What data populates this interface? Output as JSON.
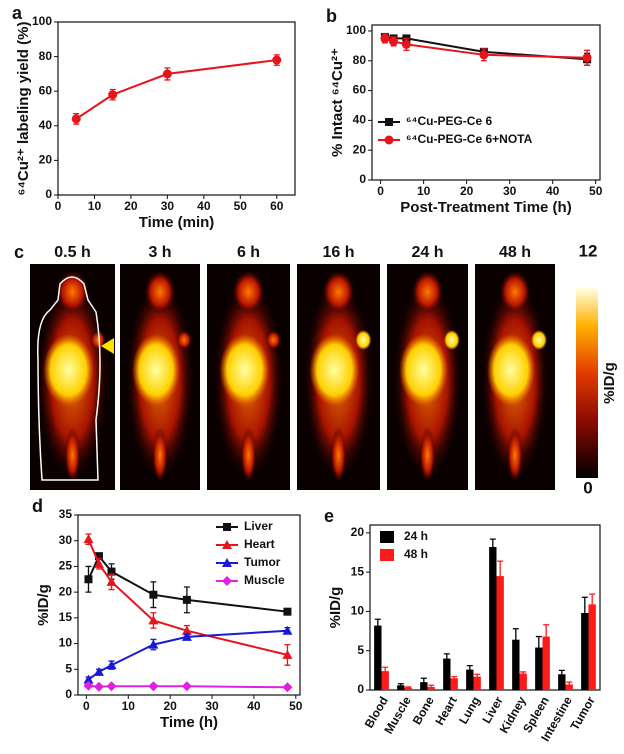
{
  "chart_data": [
    {
      "type": "line",
      "panel_label": "a",
      "xlabel": "Time (min)",
      "ylabel": "⁶⁴Cu²⁺ labeling yield (%)",
      "x": [
        5,
        15,
        30,
        60
      ],
      "series": [
        {
          "color": "#e8141c",
          "marker": "circle",
          "values": [
            44,
            58,
            70,
            78
          ],
          "errors": [
            3,
            3,
            3.5,
            3
          ]
        }
      ],
      "xlim": [
        0,
        65
      ],
      "xticks": [
        0,
        10,
        20,
        30,
        40,
        50,
        60
      ],
      "ylim": [
        0,
        100
      ],
      "yticks": [
        0,
        20,
        40,
        60,
        80,
        100
      ]
    },
    {
      "type": "line",
      "panel_label": "b",
      "xlabel": "Post-Treatment Time (h)",
      "ylabel": "% Intact ⁶⁴Cu²⁺",
      "x": [
        1,
        3,
        6,
        24,
        48
      ],
      "series": [
        {
          "name": "⁶⁴Cu-PEG-Ce 6",
          "color": "#111111",
          "marker": "square",
          "values": [
            96,
            95,
            95,
            86,
            81
          ],
          "errors": [
            2,
            2,
            2,
            2,
            4
          ]
        },
        {
          "name": "⁶⁴Cu-PEG-Ce 6+NOTA",
          "color": "#e8141c",
          "marker": "circle",
          "values": [
            95,
            93,
            91,
            84,
            82
          ],
          "errors": [
            3,
            3,
            4,
            4,
            5
          ]
        }
      ],
      "legend": "lower left",
      "xlim": [
        -2,
        51
      ],
      "xticks": [
        0,
        10,
        20,
        30,
        40,
        50
      ],
      "ylim": [
        0,
        104
      ],
      "yticks": [
        0,
        20,
        40,
        60,
        80,
        100
      ]
    },
    {
      "type": "line",
      "panel_label": "d",
      "xlabel": "Time (h)",
      "ylabel": "%ID/g",
      "x": [
        0.5,
        3,
        6,
        16,
        24,
        48
      ],
      "series": [
        {
          "name": "Liver",
          "color": "#111111",
          "marker": "square",
          "values": [
            22.5,
            27,
            24,
            19.5,
            18.5,
            16.2
          ],
          "errors": [
            2.5,
            0.5,
            1.5,
            2.5,
            2.5,
            0.6
          ]
        },
        {
          "name": "Heart",
          "color": "#e8141c",
          "marker": "triangle",
          "values": [
            30.3,
            25.5,
            22,
            14.5,
            12.5,
            7.8
          ],
          "errors": [
            1,
            1,
            1.5,
            1.5,
            1,
            2
          ]
        },
        {
          "name": "Tumor",
          "color": "#1a1ad6",
          "marker": "triangle",
          "values": [
            3,
            4.5,
            5.8,
            9.8,
            11.3,
            12.5
          ],
          "errors": [
            0.5,
            0.5,
            0.8,
            1,
            0.5,
            0.6
          ]
        },
        {
          "name": "Muscle",
          "color": "#e020e0",
          "marker": "diamond",
          "values": [
            1.8,
            1.6,
            1.7,
            1.7,
            1.7,
            1.5
          ],
          "errors": [
            0.3,
            0.3,
            0.3,
            0.2,
            0.2,
            0.2
          ]
        }
      ],
      "legend": "upper right",
      "xlim": [
        -2,
        51
      ],
      "xticks": [
        0,
        10,
        20,
        30,
        40,
        50
      ],
      "ylim": [
        0,
        35
      ],
      "yticks": [
        0,
        5,
        10,
        15,
        20,
        25,
        30,
        35
      ]
    },
    {
      "type": "bar",
      "panel_label": "e",
      "ylabel": "%ID/g",
      "categories": [
        "Blood",
        "Muscle",
        "Bone",
        "Heart",
        "Lung",
        "Liver",
        "Kidney",
        "Spleen",
        "Intestine",
        "Tumor"
      ],
      "series": [
        {
          "name": "24 h",
          "color": "#000000",
          "values": [
            8.2,
            0.6,
            1.0,
            4.0,
            2.6,
            18.2,
            6.4,
            5.4,
            2.0,
            9.8
          ],
          "errors": [
            0.8,
            0.2,
            0.5,
            0.6,
            0.5,
            1.0,
            1.4,
            1.4,
            0.5,
            2.0
          ]
        },
        {
          "name": "48 h",
          "color": "#ff1a1a",
          "values": [
            2.4,
            0.3,
            0.4,
            1.5,
            1.7,
            14.5,
            2.1,
            6.8,
            0.7,
            10.9
          ],
          "errors": [
            0.5,
            0.1,
            0.2,
            0.2,
            0.3,
            1.9,
            0.2,
            1.5,
            0.3,
            1.3
          ]
        }
      ],
      "legend": "upper left",
      "ylim": [
        0,
        21
      ],
      "yticks": [
        0,
        5,
        10,
        15,
        20
      ]
    }
  ],
  "panel_c": {
    "panel_label": "c",
    "times": [
      "0.5 h",
      "3 h",
      "6 h",
      "16 h",
      "24 h",
      "48 h"
    ],
    "colorbar_max": 12,
    "colorbar_min": 0,
    "colorbar_label": "%ID/g"
  }
}
